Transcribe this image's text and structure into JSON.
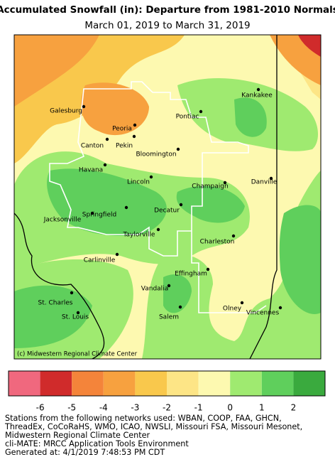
{
  "header": {
    "title": "Accumulated Snowfall (in): Departure from 1981-2010 Normals",
    "subtitle": "March 01, 2019 to March 31, 2019"
  },
  "map": {
    "credit": "(c) Midwestern Regional Climate Center",
    "cities": [
      "Galesburg",
      "Kankakee",
      "Pontiac",
      "Peoria",
      "Canton",
      "Pekin",
      "Bloomington",
      "Havana",
      "Lincoln",
      "Champaign",
      "Danville",
      "Springfield",
      "Decatur",
      "Jacksonville",
      "Taylorville",
      "Charleston",
      "Carlinville",
      "Effingham",
      "Vandalia",
      "St. Charles",
      "Olney",
      "Vincennes",
      "St. Louis",
      "Salem"
    ]
  },
  "legend": {
    "colors": [
      "#f0687e",
      "#d02b2b",
      "#f4843a",
      "#f7a13f",
      "#f9c84c",
      "#fde586",
      "#fdf9b0",
      "#9fea70",
      "#5fcf5c",
      "#3aaa3e"
    ],
    "ticks": [
      -6,
      -5,
      -4,
      -3,
      -2,
      -1,
      0,
      1,
      2
    ]
  },
  "footer": {
    "lines": [
      "Stations from the following networks used: WBAN, COOP, FAA, GHCN,",
      "ThreadEx, CoCoRaHS, WMO, ICAO, NWSLI, Missouri FSA, Missouri Mesonet,",
      "Midwestern Regional Climate Center",
      "cli-MATE: MRCC Application Tools Environment",
      "Generated at: 4/1/2019 7:48:53 PM CDT"
    ]
  }
}
